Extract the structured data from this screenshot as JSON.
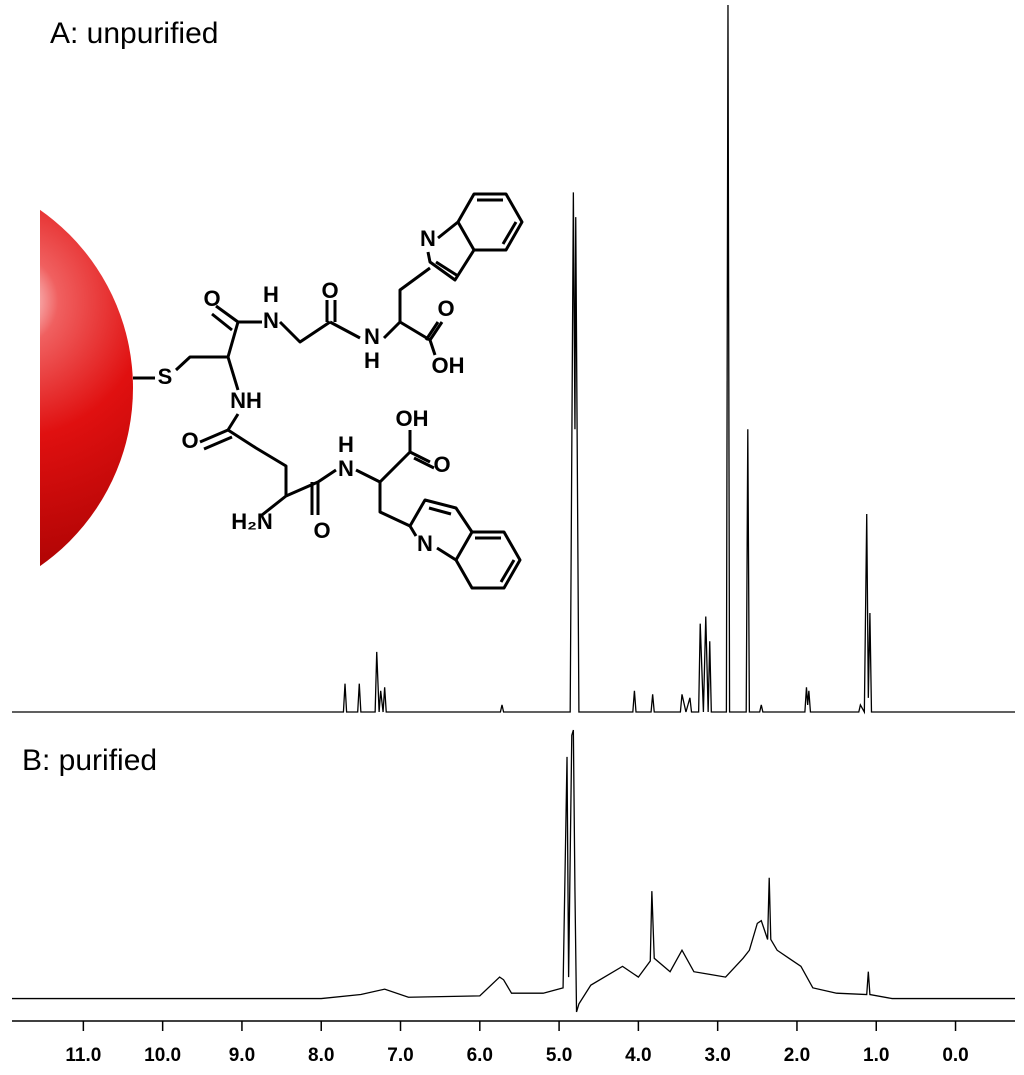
{
  "chart_data": [
    {
      "type": "line",
      "title": "A: unpurified",
      "xlim": [
        11.9,
        -0.75
      ],
      "ylim": [
        0,
        100
      ],
      "series": [
        {
          "color": "#000000",
          "x": [
            11.9,
            7.72,
            7.7,
            7.68,
            7.54,
            7.52,
            7.5,
            7.32,
            7.3,
            7.27,
            7.25,
            7.22,
            7.2,
            7.18,
            5.74,
            5.72,
            5.7,
            4.86,
            4.82,
            4.8,
            4.79,
            4.75,
            4.07,
            4.05,
            4.03,
            3.84,
            3.82,
            3.8,
            3.47,
            3.45,
            3.4,
            3.35,
            3.33,
            3.24,
            3.22,
            3.18,
            3.15,
            3.12,
            3.1,
            3.08,
            2.89,
            2.87,
            2.85,
            2.64,
            2.62,
            2.6,
            2.47,
            2.45,
            2.43,
            1.9,
            1.88,
            1.865,
            1.85,
            1.83,
            1.22,
            1.2,
            1.15,
            1.12,
            1.1,
            1.08,
            1.06,
            -0.75
          ],
          "values": [
            0,
            0,
            4,
            0,
            0,
            4,
            0,
            0,
            8.5,
            0,
            3,
            0,
            3.5,
            0,
            0,
            1,
            0,
            0,
            73.5,
            40,
            70,
            0,
            0,
            3,
            0,
            0,
            2.5,
            0,
            0,
            2.5,
            0,
            2,
            0,
            0,
            12.5,
            0,
            13.5,
            0,
            10,
            0,
            0,
            100,
            0,
            0,
            40,
            0,
            0,
            1,
            0,
            0,
            3.5,
            1,
            3,
            0,
            0,
            1,
            0,
            28,
            2,
            14,
            0,
            0
          ]
        }
      ]
    },
    {
      "type": "line",
      "title": "B: purified",
      "xlim": [
        11.9,
        -0.75
      ],
      "ylim": [
        -5,
        100
      ],
      "xticks": [
        {
          "value": 11,
          "label": "11.0"
        },
        {
          "value": 10,
          "label": "10.0"
        },
        {
          "value": 9,
          "label": "9.0"
        },
        {
          "value": 8,
          "label": "8.0"
        },
        {
          "value": 7,
          "label": "7.0"
        },
        {
          "value": 6,
          "label": "6.0"
        },
        {
          "value": 5,
          "label": "5.0"
        },
        {
          "value": 4,
          "label": "4.0"
        },
        {
          "value": 3,
          "label": "3.0"
        },
        {
          "value": 2,
          "label": "2.0"
        },
        {
          "value": 1,
          "label": "1.0"
        },
        {
          "value": 0,
          "label": "0.0"
        }
      ],
      "series": [
        {
          "color": "#000000",
          "x": [
            11.9,
            8.0,
            7.5,
            7.2,
            6.9,
            6.0,
            5.75,
            5.7,
            5.6,
            5.2,
            4.95,
            4.9,
            4.88,
            4.84,
            4.82,
            4.8,
            4.78,
            4.75,
            4.6,
            4.2,
            4.0,
            3.85,
            3.83,
            3.8,
            3.6,
            3.45,
            3.3,
            3.1,
            2.9,
            2.68,
            2.6,
            2.5,
            2.45,
            2.37,
            2.35,
            2.33,
            2.25,
            2.1,
            1.95,
            1.8,
            1.5,
            1.12,
            1.1,
            1.08,
            0.8,
            -0.75
          ],
          "values": [
            0,
            0,
            1.5,
            3.5,
            0.5,
            1,
            8,
            7,
            2,
            2,
            4,
            90,
            8,
            98,
            100,
            40,
            -5,
            -2,
            5,
            12,
            8,
            14,
            40,
            15,
            10,
            18,
            10,
            9,
            8,
            15,
            18,
            28,
            29,
            22,
            45,
            22,
            18,
            15,
            12,
            4,
            2,
            1.5,
            10,
            1.5,
            0,
            0
          ]
        }
      ]
    }
  ],
  "structure": {
    "atom_labels": [
      "S",
      "O",
      "H",
      "N",
      "O",
      "N",
      "H",
      "O",
      "OH",
      "N",
      "NH",
      "O",
      "H",
      "N",
      "OH",
      "O",
      "H₂N",
      "O",
      "N"
    ]
  }
}
